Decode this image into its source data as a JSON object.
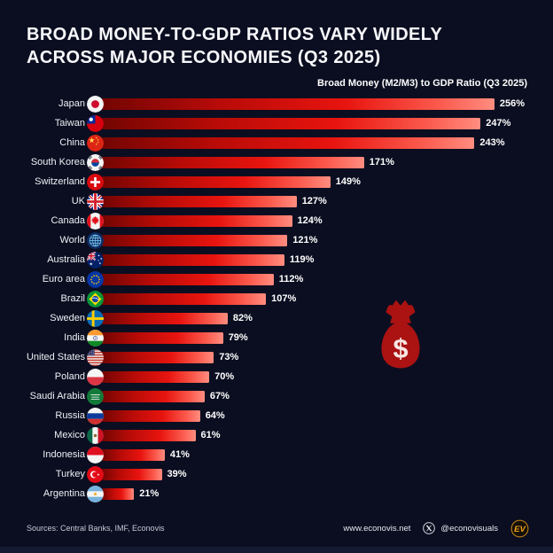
{
  "title": {
    "line1": "BROAD MONEY-TO-GDP RATIOS VARY WIDELY",
    "line2": "ACROSS MAJOR ECONOMIES (Q3 2025)"
  },
  "chart_data": {
    "type": "bar",
    "orientation": "horizontal",
    "title": "Broad Money (M2/M3) to GDP Ratio (Q3 2025)",
    "unit": "%",
    "xlim": [
      0,
      260
    ],
    "grid": false,
    "legend": "none",
    "value_labels_shown": true,
    "sorted": "descending",
    "categories": [
      "Japan",
      "Taiwan",
      "China",
      "South Korea",
      "Switzerland",
      "UK",
      "Canada",
      "World",
      "Australia",
      "Euro area",
      "Brazil",
      "Sweden",
      "India",
      "United States",
      "Poland",
      "Saudi Arabia",
      "Russia",
      "Mexico",
      "Indonesia",
      "Turkey",
      "Argentina"
    ],
    "values": [
      256,
      247,
      243,
      171,
      149,
      127,
      124,
      121,
      119,
      112,
      107,
      82,
      79,
      73,
      70,
      67,
      64,
      61,
      41,
      39,
      21
    ],
    "values_display": [
      "256%",
      "247%",
      "243%",
      "171%",
      "149%",
      "127%",
      "124%",
      "121%",
      "119%",
      "112%",
      "107%",
      "82%",
      "79%",
      "73%",
      "70%",
      "67%",
      "64%",
      "61%",
      "41%",
      "39%",
      "21%"
    ],
    "flags": [
      "japan",
      "taiwan",
      "china",
      "south-korea",
      "switzerland",
      "uk",
      "canada",
      "world",
      "australia",
      "euro-area",
      "brazil",
      "sweden",
      "india",
      "united-states",
      "poland",
      "saudi-arabia",
      "russia",
      "mexico",
      "indonesia",
      "turkey",
      "argentina"
    ],
    "bar_gradient": [
      "#730502",
      "#e8140f",
      "#ff8d80"
    ]
  },
  "decoration": {
    "money_bag_icon": "money-bag-icon",
    "money_bag_color": "#ab1212",
    "money_bag_symbol": "$"
  },
  "footer": {
    "sources": "Sources: Central Banks, IMF, Econovis",
    "website": "www.econovis.net",
    "social_icon": "x-logo-icon",
    "social_handle": "@econovisuals",
    "badge_initials": "EV",
    "badge_color": "#efa31d"
  },
  "colors": {
    "background": "#0b0e20",
    "bottom_strip": "#151a33",
    "text": "#ffffff"
  }
}
